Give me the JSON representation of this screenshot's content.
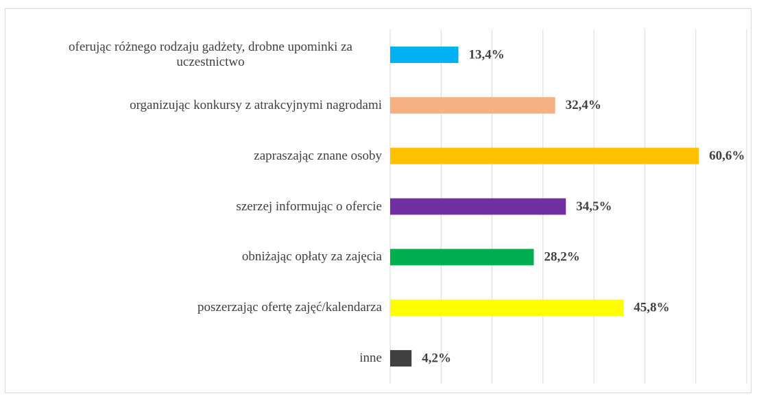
{
  "chart_data": {
    "type": "bar",
    "orientation": "horizontal",
    "categories": [
      "oferując różnego rodzaju gadżety, drobne upominki za uczestnictwo",
      "organizując konkursy z atrakcyjnymi nagrodami",
      "zapraszając znane osoby",
      "szerzej informując o ofercie",
      "obniżając opłaty za zajęcia",
      "poszerzając ofertę zajęć/kalendarza",
      "inne"
    ],
    "values": [
      13.4,
      32.4,
      60.6,
      34.5,
      28.2,
      45.8,
      4.2
    ],
    "value_labels": [
      "13,4%",
      "32,4%",
      "60,6%",
      "34,5%",
      "28,2%",
      "45,8%",
      "4,2%"
    ],
    "colors": [
      "#00b0f0",
      "#f4b183",
      "#ffc000",
      "#7030a0",
      "#00b050",
      "#ffff00",
      "#404040"
    ],
    "xlim": [
      0,
      70
    ],
    "xticks": [
      0,
      10,
      20,
      30,
      40,
      50,
      60,
      70
    ],
    "grid": true
  }
}
